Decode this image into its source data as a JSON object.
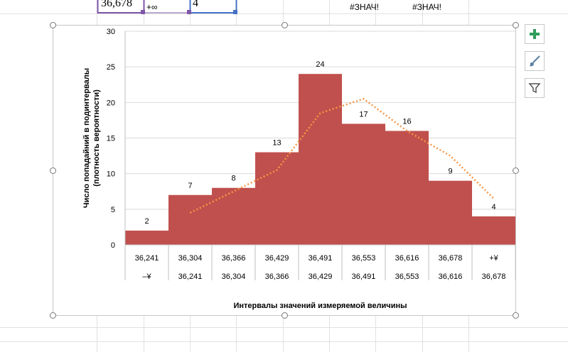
{
  "sheet": {
    "cell_a": "36,678",
    "cell_b": "+∞",
    "cell_c": "4",
    "err1": "#ЗНАЧ!",
    "err2": "#ЗНАЧ!"
  },
  "side_buttons": {
    "add": "chart-elements",
    "style": "chart-styles",
    "filter": "chart-filters"
  },
  "colors": {
    "bar": "#c0504d",
    "trend": "#f79646",
    "grid": "#d9d9d9"
  },
  "chart_data": {
    "type": "bar",
    "title": "",
    "ylabel_line1": "Число попадайний в подинтервалы",
    "ylabel_line2": "(плотность вероятности)",
    "xlabel": "Интервалы значений измеряемой величины",
    "ylim": [
      0,
      30
    ],
    "yticks": [
      "0",
      "5",
      "10",
      "15",
      "20",
      "25",
      "30"
    ],
    "categories_top": [
      "36,241",
      "36,304",
      "36,366",
      "36,429",
      "36,491",
      "36,553",
      "36,616",
      "36,678",
      "+¥"
    ],
    "categories_bottom": [
      "–¥",
      "36,241",
      "36,304",
      "36,366",
      "36,429",
      "36,491",
      "36,553",
      "36,616",
      "36,678"
    ],
    "values": [
      2,
      7,
      8,
      13,
      24,
      17,
      16,
      9,
      4
    ],
    "data_labels": [
      "2",
      "7",
      "8",
      "13",
      "24",
      "17",
      "16",
      "9",
      "4"
    ],
    "trendline": [
      4.5,
      7.5,
      10.5,
      18.5,
      20.5,
      16,
      12.5,
      6.5
    ]
  }
}
